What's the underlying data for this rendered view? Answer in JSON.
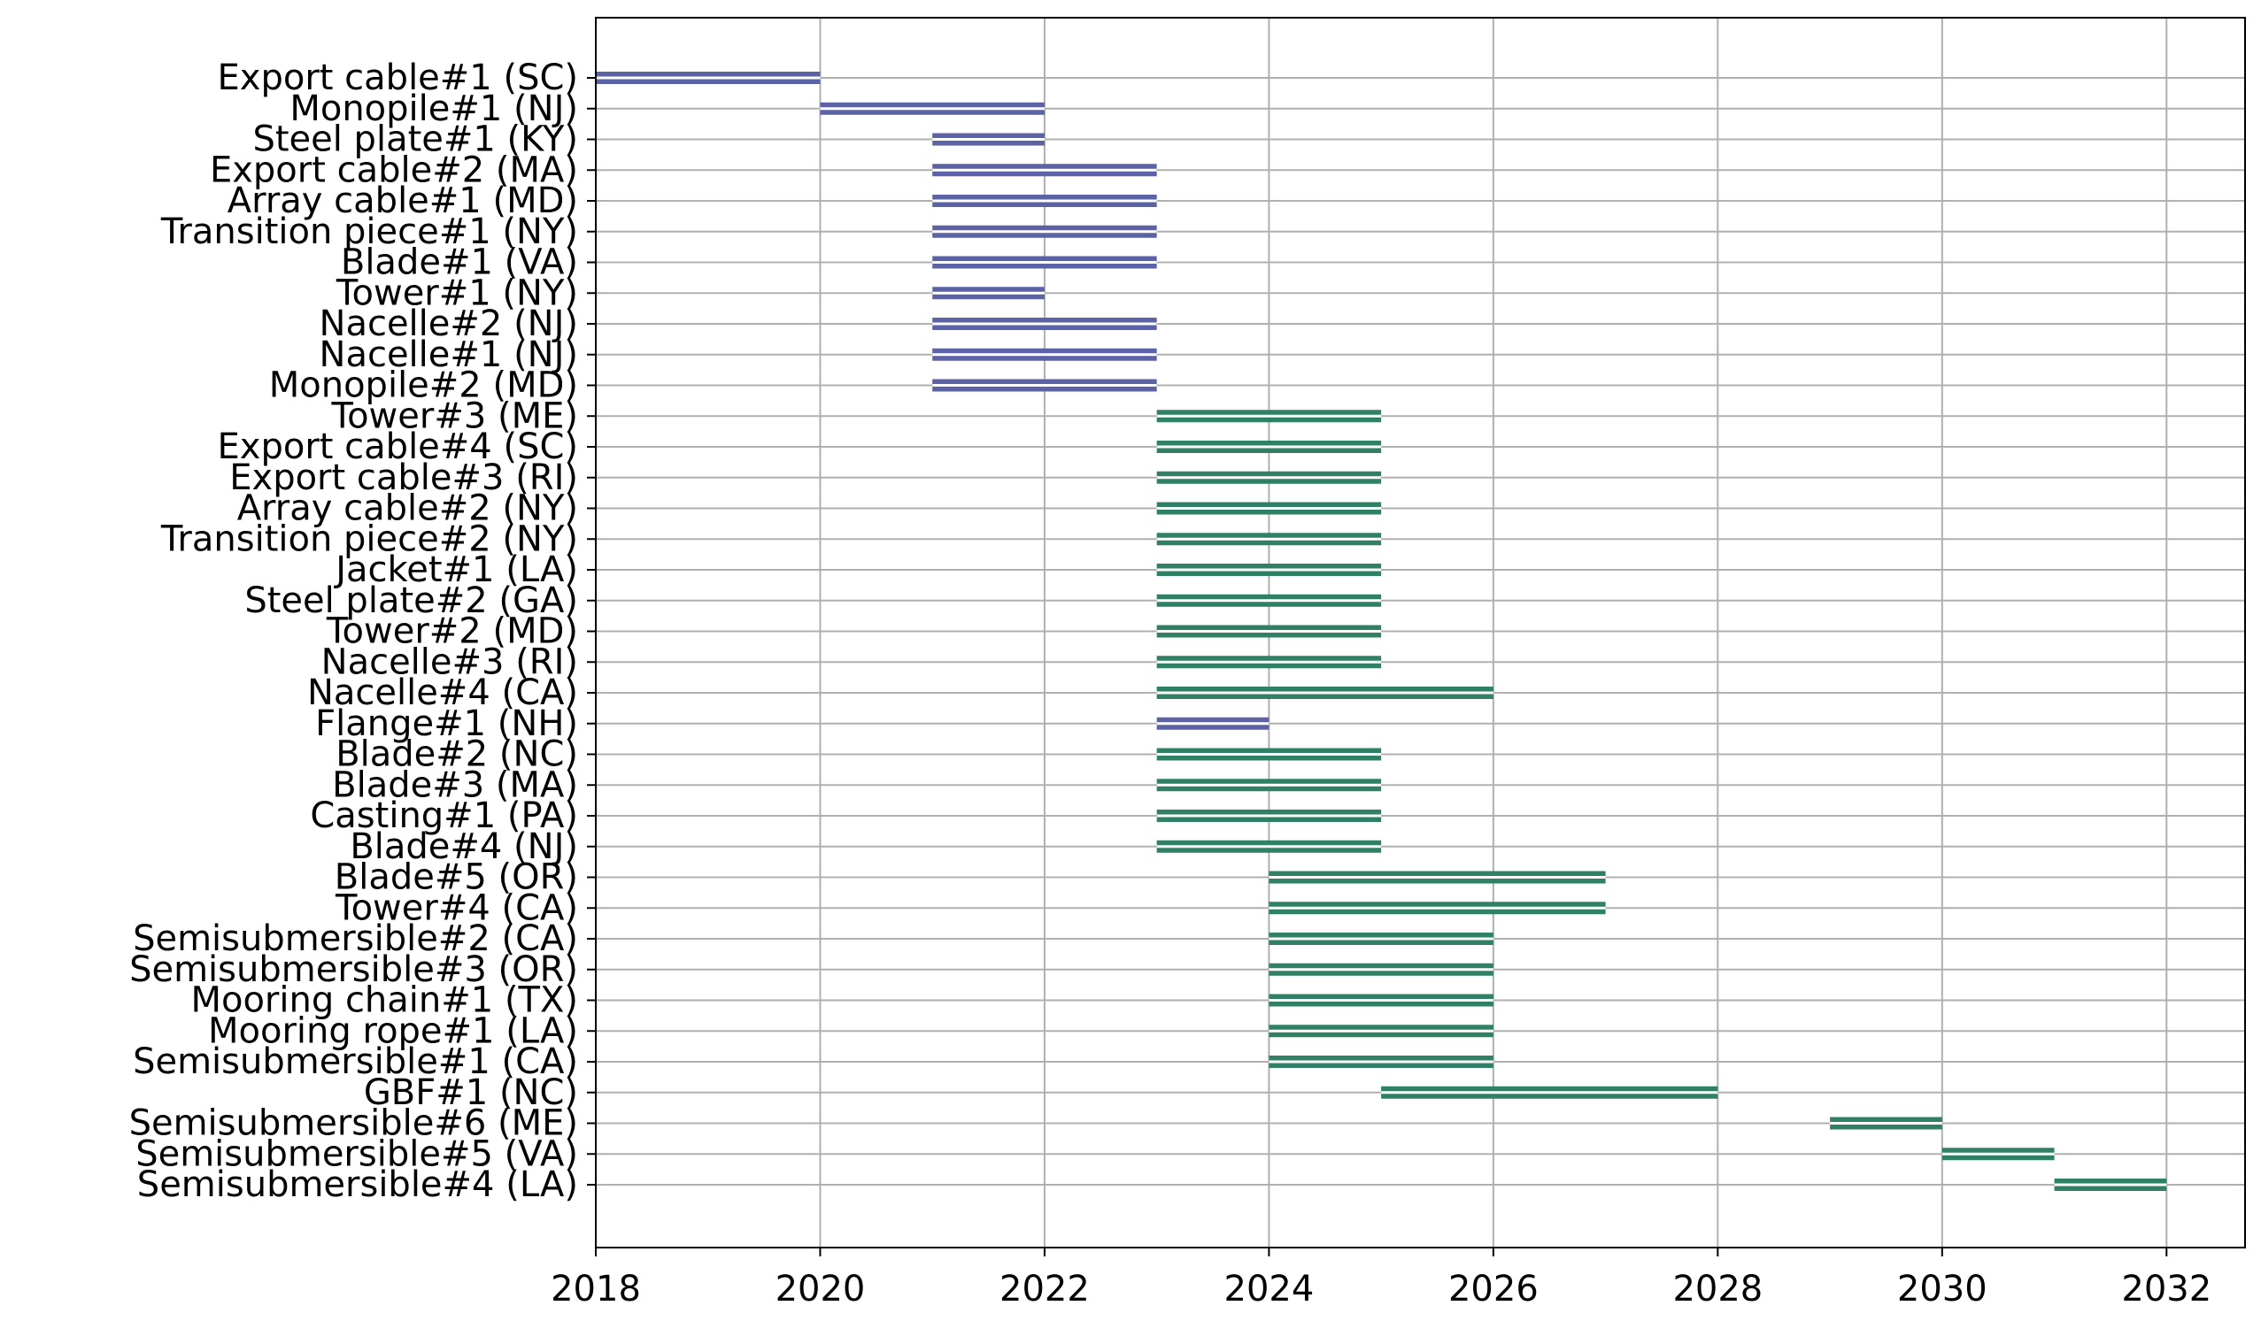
{
  "chart_data": {
    "type": "gantt",
    "title": "",
    "xlabel": "",
    "ylabel": "",
    "xlim": [
      2018,
      2032.7
    ],
    "xticks": [
      2018,
      2020,
      2022,
      2024,
      2026,
      2028,
      2030,
      2032
    ],
    "grid": true,
    "colors": {
      "phase1": "#5b62a6",
      "phase2": "#2f8065"
    },
    "tasks": [
      {
        "label": "Export cable#1 (SC)",
        "start": 2018,
        "end": 2020,
        "phase": "phase1"
      },
      {
        "label": "Monopile#1 (NJ)",
        "start": 2020,
        "end": 2022,
        "phase": "phase1"
      },
      {
        "label": "Steel plate#1 (KY)",
        "start": 2021,
        "end": 2022,
        "phase": "phase1"
      },
      {
        "label": "Export cable#2 (MA)",
        "start": 2021,
        "end": 2023,
        "phase": "phase1"
      },
      {
        "label": "Array cable#1 (MD)",
        "start": 2021,
        "end": 2023,
        "phase": "phase1"
      },
      {
        "label": "Transition piece#1 (NY)",
        "start": 2021,
        "end": 2023,
        "phase": "phase1"
      },
      {
        "label": "Blade#1 (VA)",
        "start": 2021,
        "end": 2023,
        "phase": "phase1"
      },
      {
        "label": "Tower#1 (NY)",
        "start": 2021,
        "end": 2022,
        "phase": "phase1"
      },
      {
        "label": "Nacelle#2 (NJ)",
        "start": 2021,
        "end": 2023,
        "phase": "phase1"
      },
      {
        "label": "Nacelle#1 (NJ)",
        "start": 2021,
        "end": 2023,
        "phase": "phase1"
      },
      {
        "label": "Monopile#2 (MD)",
        "start": 2021,
        "end": 2023,
        "phase": "phase1"
      },
      {
        "label": "Tower#3 (ME)",
        "start": 2023,
        "end": 2025,
        "phase": "phase2"
      },
      {
        "label": "Export cable#4 (SC)",
        "start": 2023,
        "end": 2025,
        "phase": "phase2"
      },
      {
        "label": "Export cable#3 (RI)",
        "start": 2023,
        "end": 2025,
        "phase": "phase2"
      },
      {
        "label": "Array cable#2 (NY)",
        "start": 2023,
        "end": 2025,
        "phase": "phase2"
      },
      {
        "label": "Transition piece#2 (NY)",
        "start": 2023,
        "end": 2025,
        "phase": "phase2"
      },
      {
        "label": "Jacket#1 (LA)",
        "start": 2023,
        "end": 2025,
        "phase": "phase2"
      },
      {
        "label": "Steel plate#2 (GA)",
        "start": 2023,
        "end": 2025,
        "phase": "phase2"
      },
      {
        "label": "Tower#2 (MD)",
        "start": 2023,
        "end": 2025,
        "phase": "phase2"
      },
      {
        "label": "Nacelle#3 (RI)",
        "start": 2023,
        "end": 2025,
        "phase": "phase2"
      },
      {
        "label": "Nacelle#4 (CA)",
        "start": 2023,
        "end": 2026,
        "phase": "phase2"
      },
      {
        "label": "Flange#1 (NH)",
        "start": 2023,
        "end": 2024,
        "phase": "phase1"
      },
      {
        "label": "Blade#2 (NC)",
        "start": 2023,
        "end": 2025,
        "phase": "phase2"
      },
      {
        "label": "Blade#3 (MA)",
        "start": 2023,
        "end": 2025,
        "phase": "phase2"
      },
      {
        "label": "Casting#1 (PA)",
        "start": 2023,
        "end": 2025,
        "phase": "phase2"
      },
      {
        "label": "Blade#4 (NJ)",
        "start": 2023,
        "end": 2025,
        "phase": "phase2"
      },
      {
        "label": "Blade#5 (OR)",
        "start": 2024,
        "end": 2027,
        "phase": "phase2"
      },
      {
        "label": "Tower#4 (CA)",
        "start": 2024,
        "end": 2027,
        "phase": "phase2"
      },
      {
        "label": "Semisubmersible#2 (CA)",
        "start": 2024,
        "end": 2026,
        "phase": "phase2"
      },
      {
        "label": "Semisubmersible#3 (OR)",
        "start": 2024,
        "end": 2026,
        "phase": "phase2"
      },
      {
        "label": "Mooring chain#1 (TX)",
        "start": 2024,
        "end": 2026,
        "phase": "phase2"
      },
      {
        "label": "Mooring rope#1 (LA)",
        "start": 2024,
        "end": 2026,
        "phase": "phase2"
      },
      {
        "label": "Semisubmersible#1 (CA)",
        "start": 2024,
        "end": 2026,
        "phase": "phase2"
      },
      {
        "label": "GBF#1 (NC)",
        "start": 2025,
        "end": 2028,
        "phase": "phase2"
      },
      {
        "label": "Semisubmersible#6 (ME)",
        "start": 2029,
        "end": 2030,
        "phase": "phase2"
      },
      {
        "label": "Semisubmersible#5 (VA)",
        "start": 2030,
        "end": 2031,
        "phase": "phase2"
      },
      {
        "label": "Semisubmersible#4 (LA)",
        "start": 2031,
        "end": 2032,
        "phase": "phase2"
      }
    ]
  }
}
